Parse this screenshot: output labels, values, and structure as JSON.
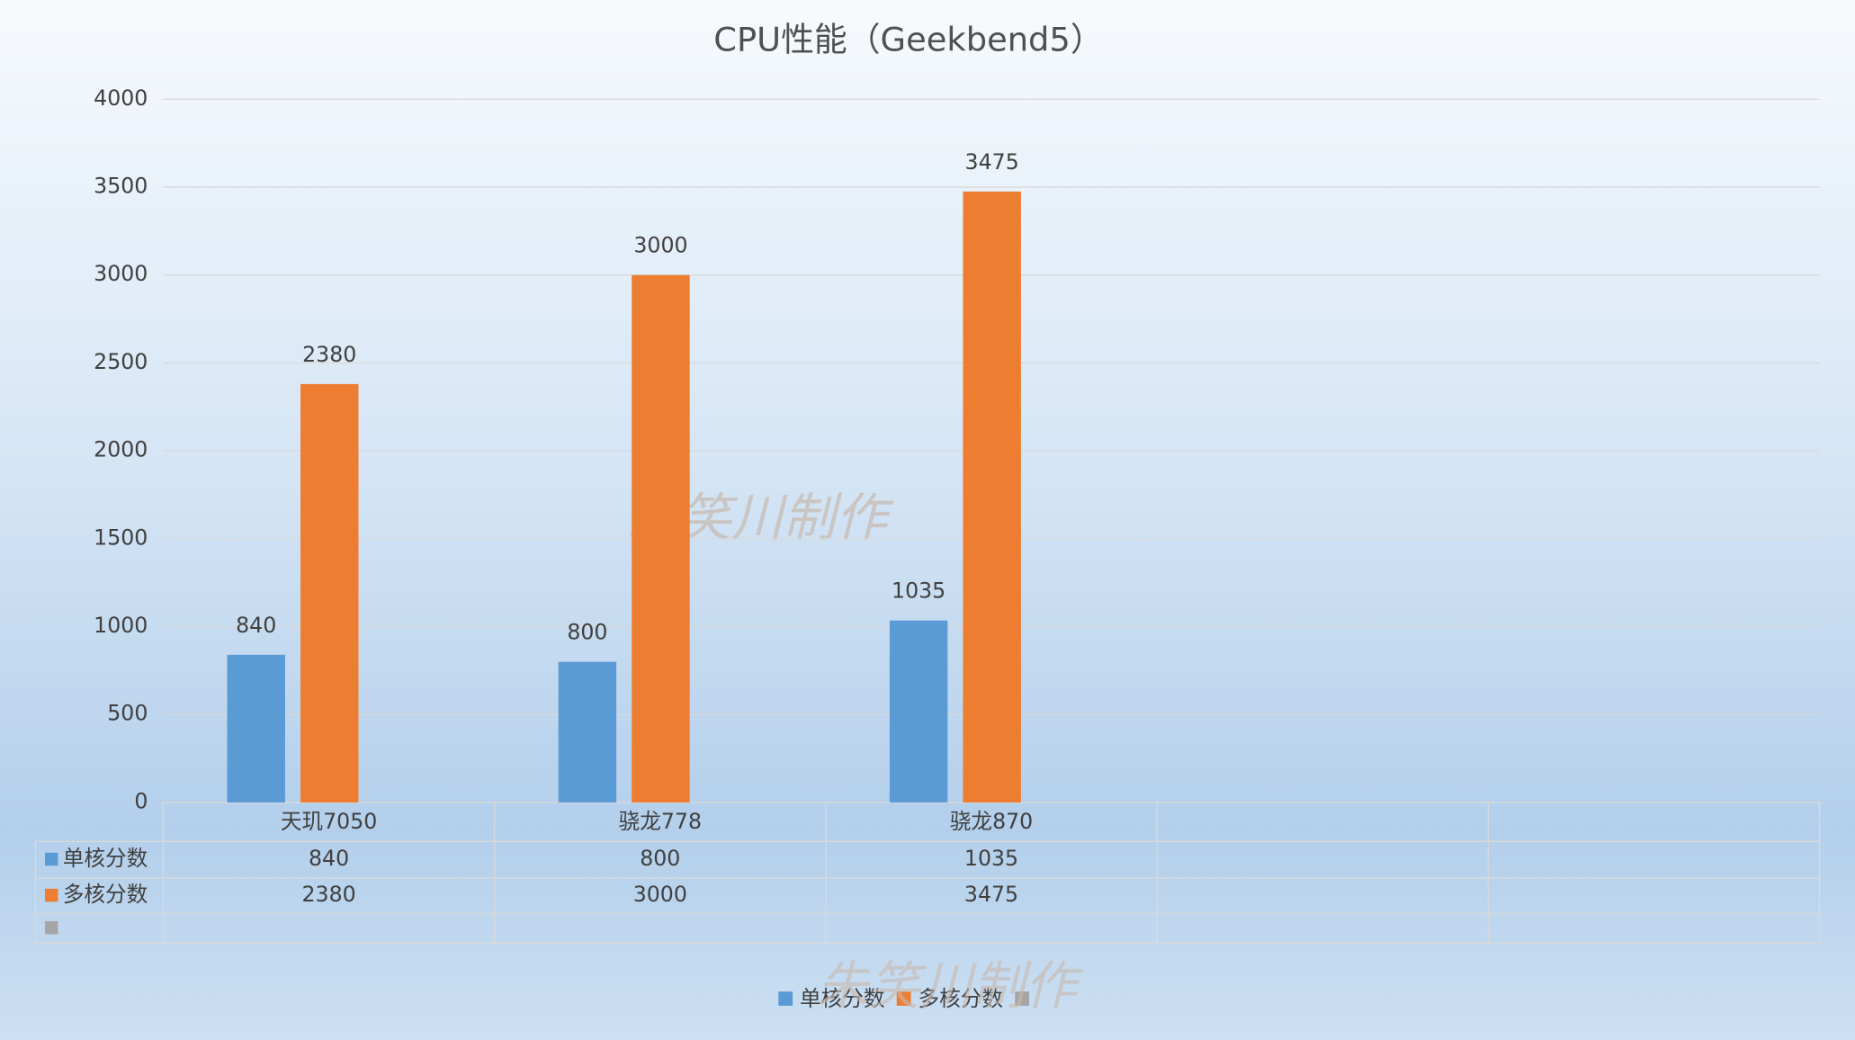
{
  "chart_data": {
    "type": "bar",
    "title": "CPU性能（Geekbend5）",
    "categories": [
      "天玑7050",
      "骁龙778",
      "骁龙870",
      null,
      null
    ],
    "series": [
      {
        "name": "单核分数",
        "color": "#5b9bd5",
        "values": [
          840,
          800,
          1035,
          null,
          null
        ]
      },
      {
        "name": "多核分数",
        "color": "#ed7d31",
        "values": [
          2380,
          3000,
          3475,
          null,
          null
        ]
      },
      {
        "color": "#a5a5a5",
        "values": [
          null,
          null,
          null,
          null,
          null
        ]
      }
    ],
    "ylim": [
      0,
      4000
    ],
    "yticks": [
      0,
      500,
      1000,
      1500,
      2000,
      2500,
      3000,
      3500,
      4000
    ],
    "grid": true,
    "legend": "bottom",
    "data_table": true,
    "watermark": "朱笑川制作"
  }
}
